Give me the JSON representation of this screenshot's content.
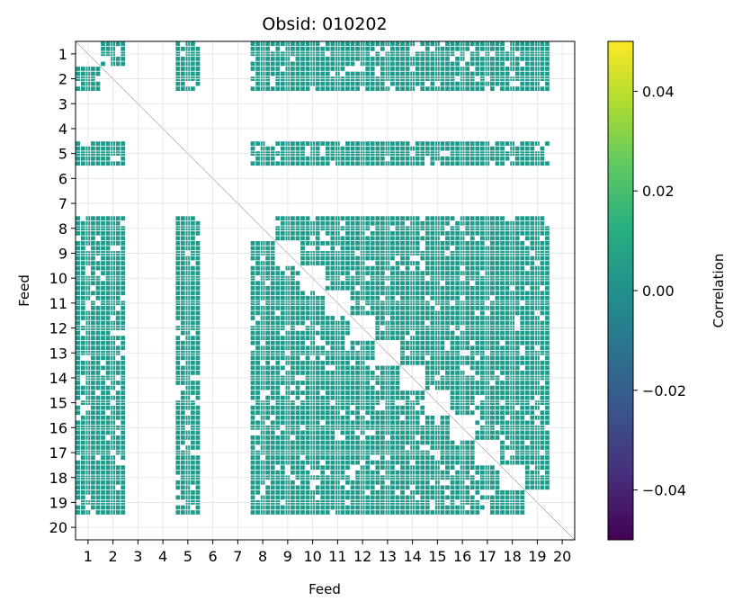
{
  "chart_data": {
    "type": "heatmap",
    "title": "Obsid: 010202",
    "xlabel": "Feed",
    "ylabel": "Feed",
    "x_ticks": [
      "1",
      "2",
      "3",
      "4",
      "5",
      "6",
      "7",
      "8",
      "9",
      "10",
      "11",
      "12",
      "13",
      "14",
      "15",
      "16",
      "17",
      "18",
      "19",
      "20"
    ],
    "y_ticks": [
      "1",
      "2",
      "3",
      "4",
      "5",
      "6",
      "7",
      "8",
      "9",
      "10",
      "11",
      "12",
      "13",
      "14",
      "15",
      "16",
      "17",
      "18",
      "19",
      "20"
    ],
    "colorbar": {
      "label": "Correlation",
      "range": [
        -0.05,
        0.05
      ],
      "ticks": [
        "0.04",
        "0.02",
        "0.00",
        "−0.02",
        "−0.04"
      ],
      "tick_values": [
        0.04,
        0.02,
        0.0,
        -0.02,
        -0.04
      ],
      "colormap": "viridis"
    },
    "cell_color": "#1f9a8a",
    "grid": true,
    "active_feeds": [
      1,
      2,
      5,
      8,
      9,
      10,
      11,
      12,
      13,
      14,
      15,
      16,
      17,
      18,
      19
    ],
    "inactive_feeds": [
      3,
      4,
      6,
      7,
      20
    ],
    "approx_value": 0.0
  }
}
